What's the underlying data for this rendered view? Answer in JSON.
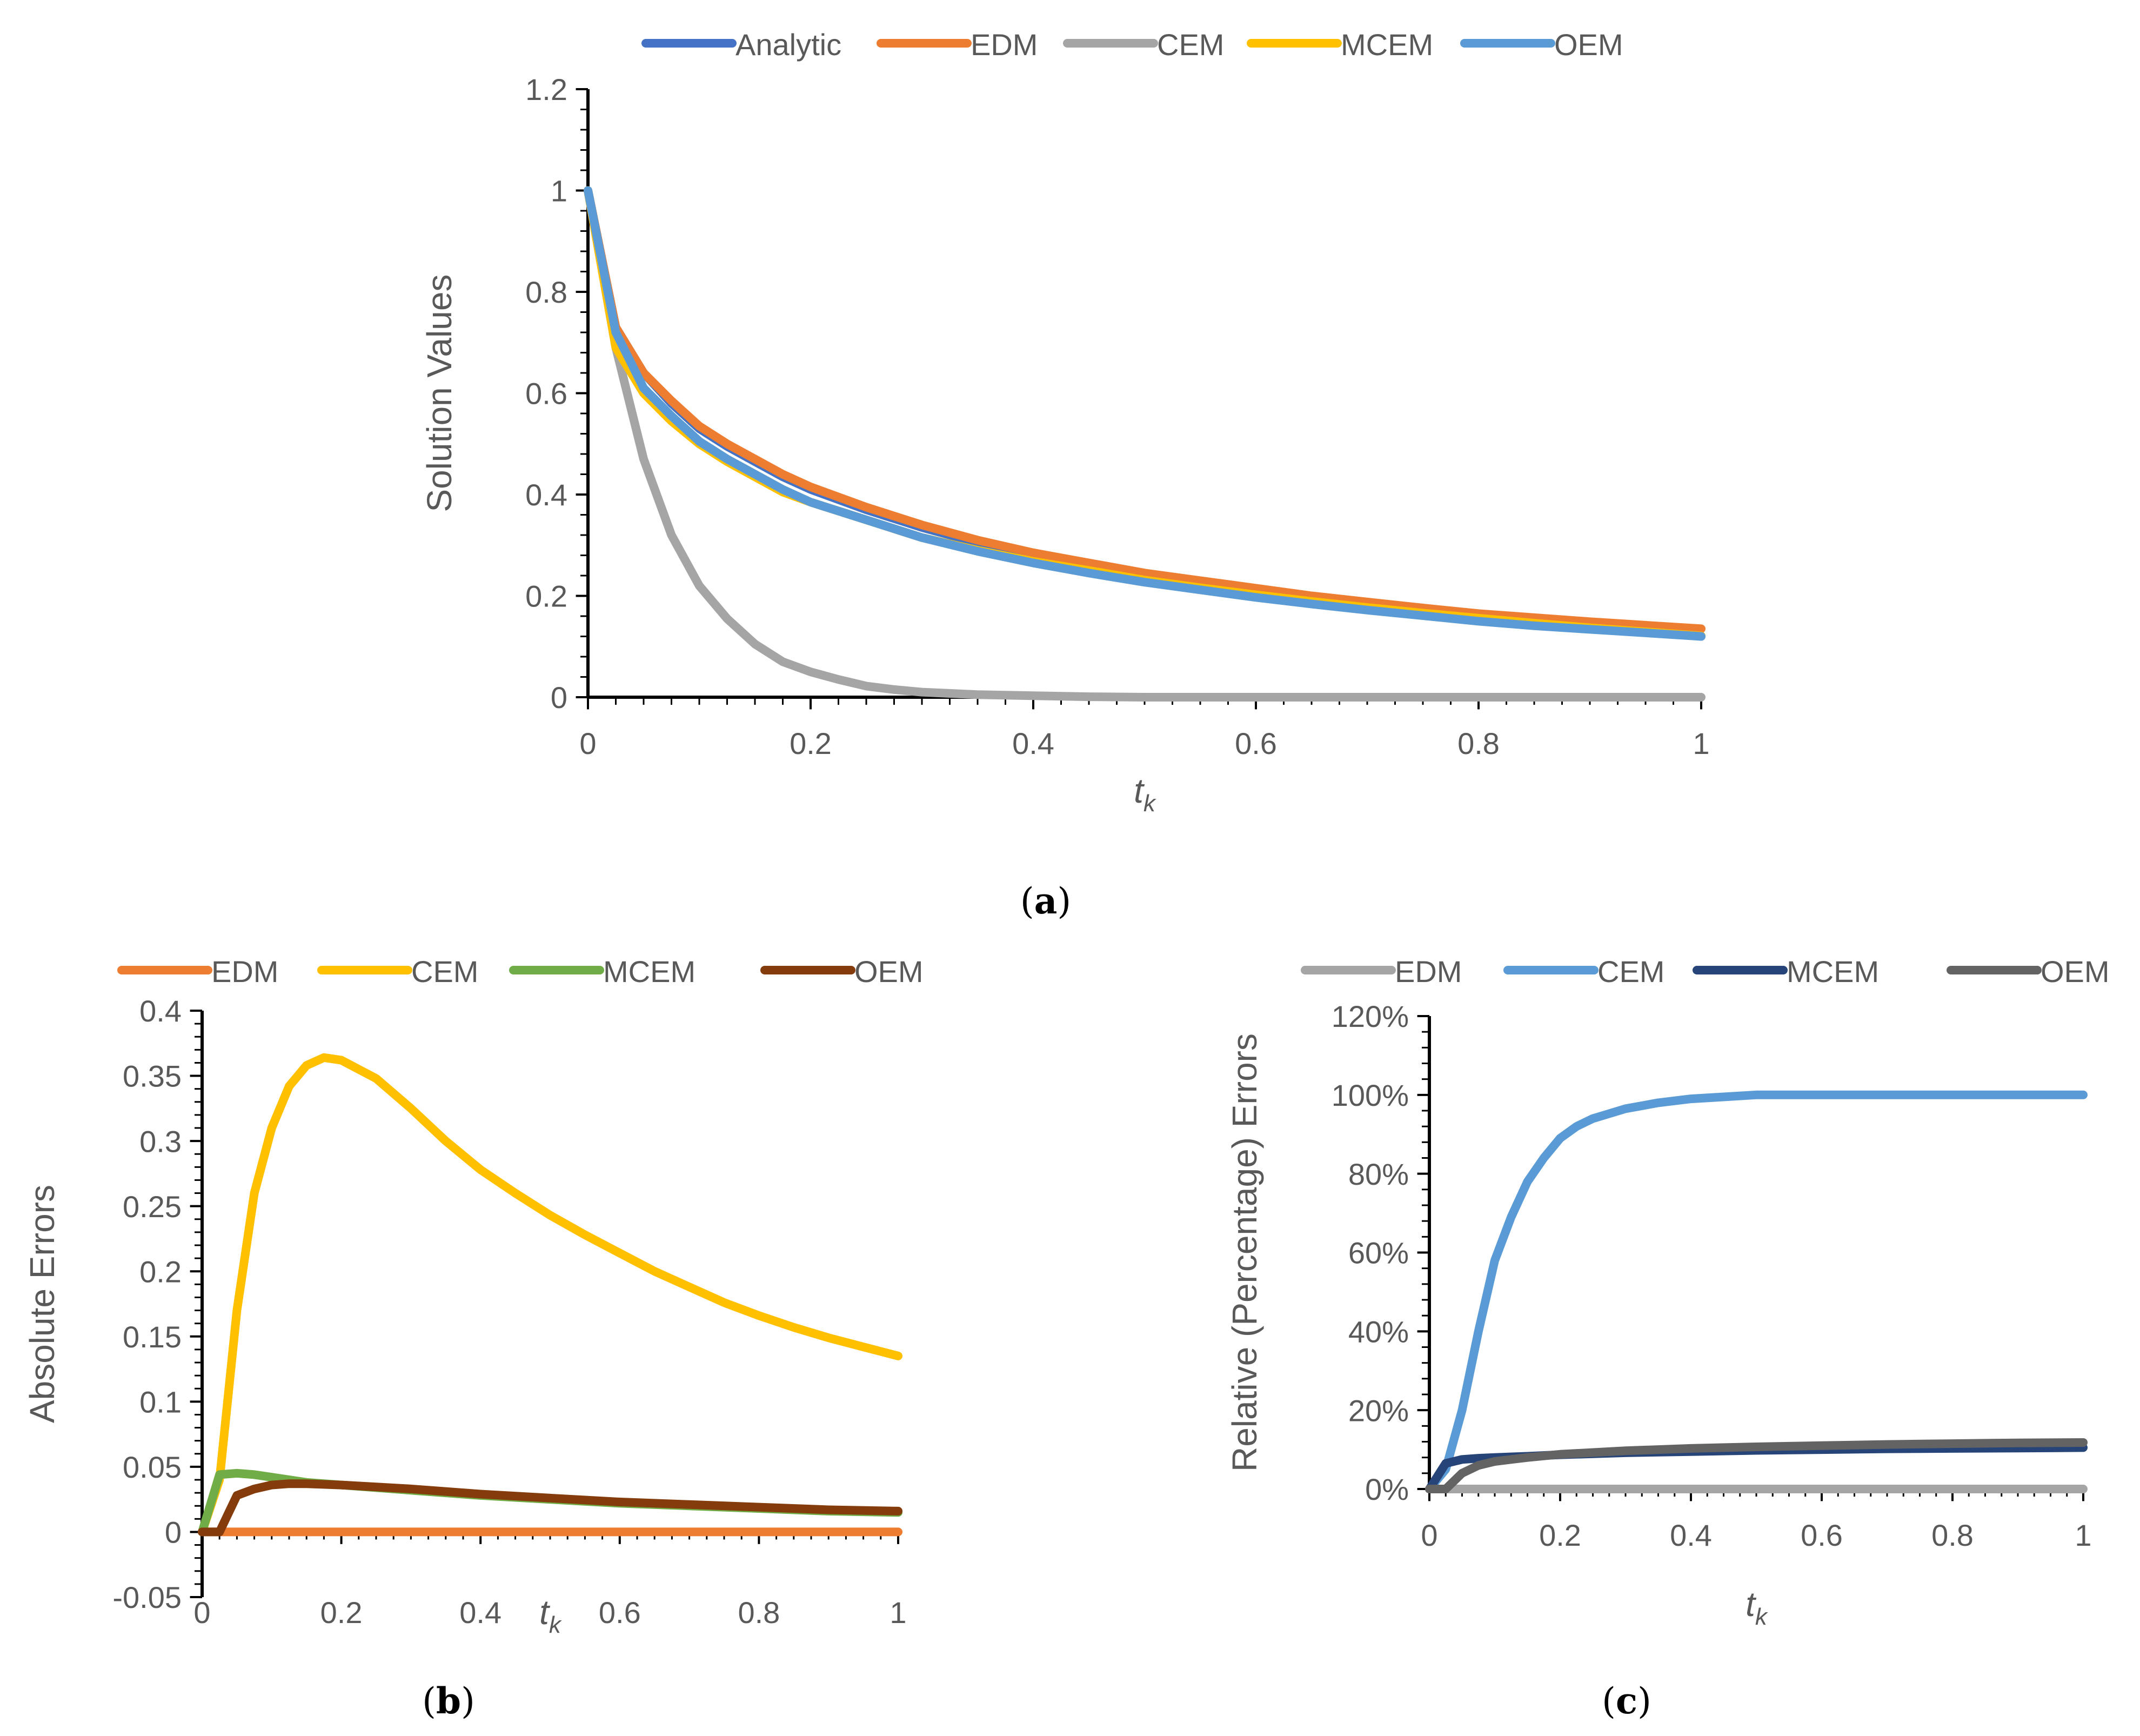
{
  "chart_data": [
    {
      "id": "a",
      "type": "line",
      "caption": "(a)",
      "caption_letter": "a",
      "xlabel": "t",
      "xlabel_sub": "k",
      "ylabel": "Solution Values",
      "xlim": [
        0,
        1
      ],
      "ylim": [
        0,
        1.2
      ],
      "xticks": [
        0,
        0.2,
        0.4,
        0.6,
        0.8,
        1
      ],
      "xtick_labels": [
        "0",
        "0.2",
        "0.4",
        "0.6",
        "0.8",
        "1"
      ],
      "yticks": [
        0,
        0.2,
        0.4,
        0.6,
        0.8,
        1,
        1.2
      ],
      "ytick_labels": [
        "0",
        "0.2",
        "0.4",
        "0.6",
        "0.8",
        "1",
        "1.2"
      ],
      "legend_position": "top",
      "series": [
        {
          "name": "Analytic",
          "color": "#4472C4",
          "x": [
            0,
            0.025,
            0.05,
            0.075,
            0.1,
            0.125,
            0.15,
            0.175,
            0.2,
            0.25,
            0.3,
            0.35,
            0.4,
            0.45,
            0.5,
            0.55,
            0.6,
            0.65,
            0.7,
            0.75,
            0.8,
            0.85,
            0.9,
            0.95,
            1.0
          ],
          "y": [
            1.0,
            0.73,
            0.64,
            0.58,
            0.53,
            0.495,
            0.465,
            0.435,
            0.41,
            0.37,
            0.335,
            0.305,
            0.28,
            0.26,
            0.24,
            0.225,
            0.21,
            0.195,
            0.183,
            0.171,
            0.16,
            0.15,
            0.141,
            0.131,
            0.12
          ]
        },
        {
          "name": "EDM",
          "color": "#ED7D31",
          "x": [
            0,
            0.025,
            0.05,
            0.075,
            0.1,
            0.125,
            0.15,
            0.175,
            0.2,
            0.25,
            0.3,
            0.35,
            0.4,
            0.45,
            0.5,
            0.55,
            0.6,
            0.65,
            0.7,
            0.75,
            0.8,
            0.85,
            0.9,
            0.95,
            1.0
          ],
          "y": [
            1.0,
            0.73,
            0.64,
            0.585,
            0.535,
            0.5,
            0.47,
            0.44,
            0.415,
            0.375,
            0.34,
            0.31,
            0.285,
            0.265,
            0.245,
            0.23,
            0.215,
            0.2,
            0.188,
            0.176,
            0.165,
            0.157,
            0.149,
            0.142,
            0.135
          ]
        },
        {
          "name": "CEM",
          "color": "#A5A5A5",
          "x": [
            0,
            0.025,
            0.05,
            0.075,
            0.1,
            0.125,
            0.15,
            0.175,
            0.2,
            0.225,
            0.25,
            0.275,
            0.3,
            0.35,
            0.4,
            0.45,
            0.5,
            0.6,
            0.7,
            0.8,
            0.9,
            1.0
          ],
          "y": [
            1.0,
            0.69,
            0.47,
            0.32,
            0.22,
            0.155,
            0.105,
            0.07,
            0.05,
            0.035,
            0.022,
            0.015,
            0.01,
            0.005,
            0.003,
            0.001,
            0.0,
            0.0,
            0.0,
            0.0,
            0.0,
            0.0
          ]
        },
        {
          "name": "MCEM",
          "color": "#FFC000",
          "x": [
            0,
            0.025,
            0.05,
            0.075,
            0.1,
            0.125,
            0.15,
            0.175,
            0.2,
            0.25,
            0.3,
            0.35,
            0.4,
            0.45,
            0.5,
            0.55,
            0.6,
            0.65,
            0.7,
            0.75,
            0.8,
            0.85,
            0.9,
            0.95,
            1.0
          ],
          "y": [
            1.0,
            0.69,
            0.6,
            0.545,
            0.5,
            0.465,
            0.435,
            0.405,
            0.385,
            0.35,
            0.315,
            0.29,
            0.268,
            0.25,
            0.231,
            0.216,
            0.202,
            0.189,
            0.177,
            0.166,
            0.156,
            0.146,
            0.137,
            0.129,
            0.121
          ]
        },
        {
          "name": "OEM",
          "color": "#5B9BD5",
          "x": [
            0,
            0.025,
            0.05,
            0.075,
            0.1,
            0.125,
            0.15,
            0.175,
            0.2,
            0.25,
            0.3,
            0.35,
            0.4,
            0.45,
            0.5,
            0.55,
            0.6,
            0.65,
            0.7,
            0.75,
            0.8,
            0.85,
            0.9,
            0.95,
            1.0
          ],
          "y": [
            1.0,
            0.72,
            0.61,
            0.555,
            0.505,
            0.47,
            0.44,
            0.41,
            0.385,
            0.35,
            0.315,
            0.288,
            0.265,
            0.245,
            0.227,
            0.212,
            0.197,
            0.184,
            0.172,
            0.161,
            0.15,
            0.141,
            0.134,
            0.127,
            0.12
          ]
        }
      ]
    },
    {
      "id": "b",
      "type": "line",
      "caption": "(b)",
      "caption_letter": "b",
      "xlabel": "t",
      "xlabel_sub": "k",
      "ylabel": "Absolute Errors",
      "xlim": [
        0,
        1
      ],
      "ylim": [
        -0.05,
        0.4
      ],
      "xticks": [
        0,
        0.2,
        0.4,
        0.6,
        0.8,
        1
      ],
      "xtick_labels": [
        "0",
        "0.2",
        "0.4",
        "0.6",
        "0.8",
        "1"
      ],
      "yticks": [
        -0.05,
        0,
        0.05,
        0.1,
        0.15,
        0.2,
        0.25,
        0.3,
        0.35,
        0.4
      ],
      "ytick_labels": [
        "-0.05",
        "0",
        "0.05",
        "0.1",
        "0.15",
        "0.2",
        "0.25",
        "0.3",
        "0.35",
        "0.4"
      ],
      "legend_position": "top",
      "series": [
        {
          "name": "EDM",
          "color": "#ED7D31",
          "x": [
            0,
            0.1,
            0.2,
            0.3,
            0.4,
            0.5,
            0.6,
            0.7,
            0.8,
            0.9,
            1.0
          ],
          "y": [
            0,
            0,
            0,
            0,
            0,
            0,
            0,
            0,
            0,
            0,
            0
          ]
        },
        {
          "name": "CEM",
          "color": "#FFC000",
          "x": [
            0,
            0.025,
            0.05,
            0.075,
            0.1,
            0.125,
            0.15,
            0.175,
            0.2,
            0.25,
            0.3,
            0.35,
            0.4,
            0.45,
            0.5,
            0.55,
            0.6,
            0.65,
            0.7,
            0.75,
            0.8,
            0.85,
            0.9,
            0.95,
            1.0
          ],
          "y": [
            0,
            0.04,
            0.17,
            0.26,
            0.31,
            0.342,
            0.358,
            0.364,
            0.362,
            0.348,
            0.325,
            0.3,
            0.278,
            0.26,
            0.243,
            0.228,
            0.214,
            0.2,
            0.188,
            0.176,
            0.166,
            0.157,
            0.149,
            0.142,
            0.135
          ]
        },
        {
          "name": "MCEM",
          "color": "#70AD47",
          "x": [
            0,
            0.025,
            0.05,
            0.075,
            0.1,
            0.15,
            0.2,
            0.3,
            0.4,
            0.5,
            0.6,
            0.7,
            0.8,
            0.9,
            1.0
          ],
          "y": [
            0,
            0.044,
            0.045,
            0.044,
            0.042,
            0.038,
            0.036,
            0.032,
            0.028,
            0.025,
            0.022,
            0.02,
            0.018,
            0.016,
            0.015
          ]
        },
        {
          "name": "OEM",
          "color": "#843C0C",
          "x": [
            0,
            0.025,
            0.05,
            0.075,
            0.1,
            0.125,
            0.15,
            0.2,
            0.3,
            0.4,
            0.5,
            0.6,
            0.7,
            0.8,
            0.9,
            1.0
          ],
          "y": [
            0,
            0,
            0.028,
            0.033,
            0.036,
            0.037,
            0.037,
            0.036,
            0.033,
            0.029,
            0.026,
            0.023,
            0.021,
            0.019,
            0.017,
            0.016
          ]
        }
      ]
    },
    {
      "id": "c",
      "type": "line",
      "caption": "(c)",
      "caption_letter": "c",
      "xlabel": "t",
      "xlabel_sub": "k",
      "ylabel": "Relative (Percentage) Errors",
      "xlim": [
        0,
        1
      ],
      "ylim": [
        0,
        1.2
      ],
      "xticks": [
        0,
        0.2,
        0.4,
        0.6,
        0.8,
        1
      ],
      "xtick_labels": [
        "0",
        "0.2",
        "0.4",
        "0.6",
        "0.8",
        "1"
      ],
      "yticks": [
        0,
        0.2,
        0.4,
        0.6,
        0.8,
        1.0,
        1.2
      ],
      "ytick_labels": [
        "0%",
        "20%",
        "40%",
        "60%",
        "80%",
        "100%",
        "120%"
      ],
      "legend_position": "top",
      "series": [
        {
          "name": "EDM",
          "color": "#A5A5A5",
          "x": [
            0,
            0.1,
            0.2,
            0.3,
            0.4,
            0.5,
            0.6,
            0.7,
            0.8,
            0.9,
            1.0
          ],
          "y": [
            0,
            0,
            0,
            0,
            0,
            0,
            0,
            0,
            0,
            0,
            0
          ]
        },
        {
          "name": "CEM",
          "color": "#5B9BD5",
          "x": [
            0,
            0.025,
            0.05,
            0.075,
            0.1,
            0.125,
            0.15,
            0.175,
            0.2,
            0.225,
            0.25,
            0.3,
            0.35,
            0.4,
            0.45,
            0.5,
            0.6,
            0.7,
            0.8,
            0.9,
            1.0
          ],
          "y": [
            0,
            0.05,
            0.2,
            0.4,
            0.58,
            0.69,
            0.78,
            0.84,
            0.89,
            0.92,
            0.94,
            0.965,
            0.98,
            0.99,
            0.995,
            1.0,
            1.0,
            1.0,
            1.0,
            1.0,
            1.0
          ]
        },
        {
          "name": "MCEM",
          "color": "#264478",
          "x": [
            0,
            0.025,
            0.05,
            0.075,
            0.1,
            0.15,
            0.2,
            0.3,
            0.4,
            0.5,
            0.6,
            0.7,
            0.8,
            0.9,
            1.0
          ],
          "y": [
            0,
            0.065,
            0.075,
            0.078,
            0.08,
            0.083,
            0.087,
            0.092,
            0.095,
            0.098,
            0.1,
            0.102,
            0.103,
            0.104,
            0.105
          ]
        },
        {
          "name": "OEM",
          "color": "#636363",
          "x": [
            0,
            0.025,
            0.05,
            0.075,
            0.1,
            0.15,
            0.2,
            0.3,
            0.4,
            0.5,
            0.6,
            0.7,
            0.8,
            0.9,
            1.0
          ],
          "y": [
            0,
            0,
            0.04,
            0.06,
            0.07,
            0.08,
            0.088,
            0.097,
            0.103,
            0.107,
            0.11,
            0.113,
            0.115,
            0.117,
            0.118
          ]
        }
      ]
    }
  ]
}
